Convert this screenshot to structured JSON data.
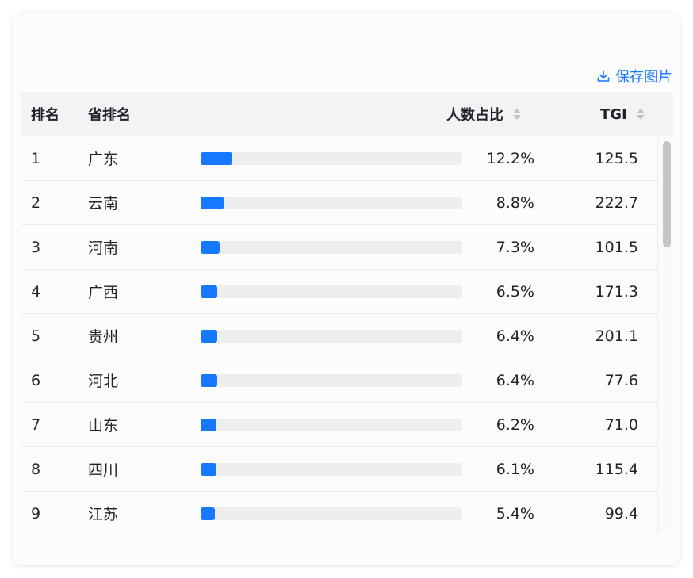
{
  "save_label": "保存图片",
  "header": {
    "rank": "排名",
    "province": "省排名",
    "share": "人数占比",
    "tgi": "TGI"
  },
  "rows": [
    {
      "rank": "1",
      "province": "广东",
      "share": "12.2%",
      "share_value": 12.2,
      "tgi": "125.5"
    },
    {
      "rank": "2",
      "province": "云南",
      "share": "8.8%",
      "share_value": 8.8,
      "tgi": "222.7"
    },
    {
      "rank": "3",
      "province": "河南",
      "share": "7.3%",
      "share_value": 7.3,
      "tgi": "101.5"
    },
    {
      "rank": "4",
      "province": "广西",
      "share": "6.5%",
      "share_value": 6.5,
      "tgi": "171.3"
    },
    {
      "rank": "5",
      "province": "贵州",
      "share": "6.4%",
      "share_value": 6.4,
      "tgi": "201.1"
    },
    {
      "rank": "6",
      "province": "河北",
      "share": "6.4%",
      "share_value": 6.4,
      "tgi": "77.6"
    },
    {
      "rank": "7",
      "province": "山东",
      "share": "6.2%",
      "share_value": 6.2,
      "tgi": "71.0"
    },
    {
      "rank": "8",
      "province": "四川",
      "share": "6.1%",
      "share_value": 6.1,
      "tgi": "115.4"
    },
    {
      "rank": "9",
      "province": "江苏",
      "share": "5.4%",
      "share_value": 5.4,
      "tgi": "99.4"
    }
  ],
  "colors": {
    "accent": "#1677ff",
    "track": "#eeeeee"
  }
}
